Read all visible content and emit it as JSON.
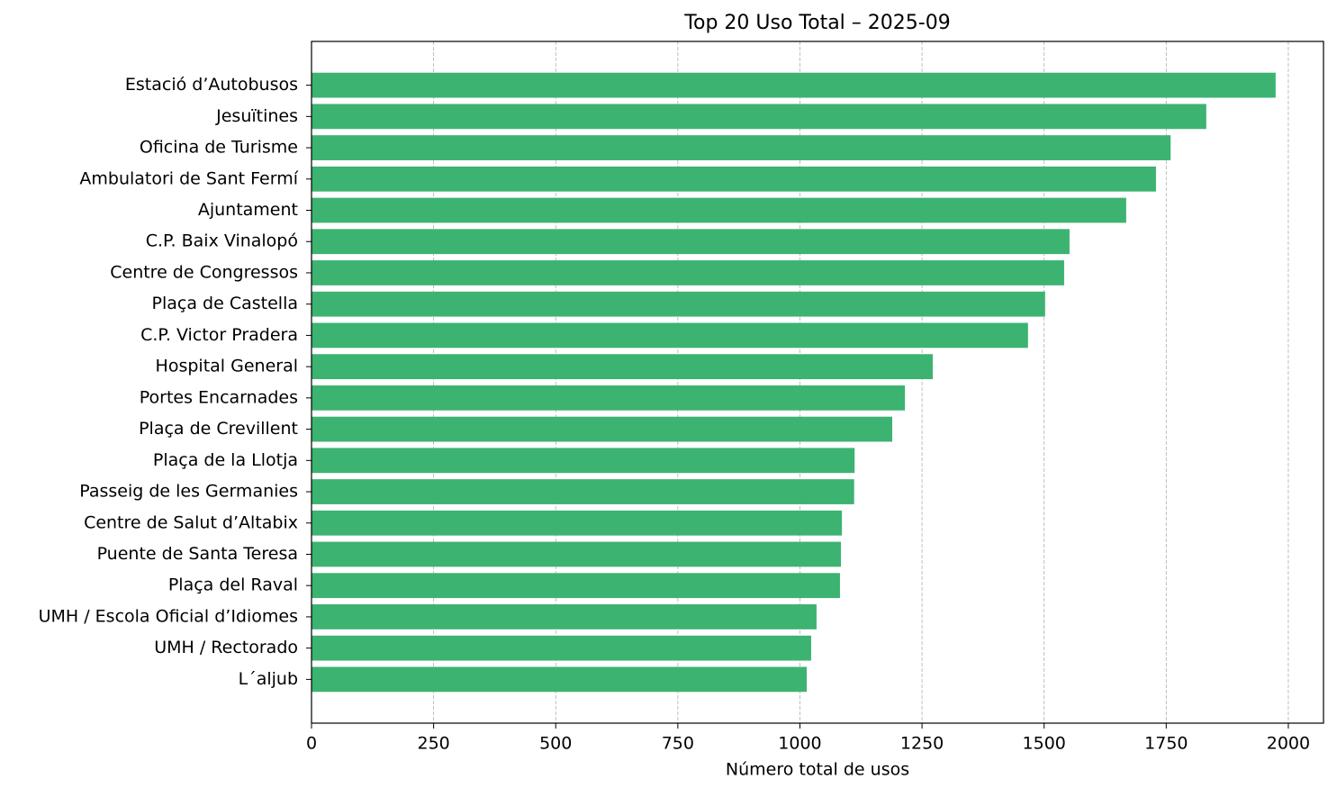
{
  "chart_data": {
    "type": "barh",
    "title": "Top 20 Uso Total – 2025-09",
    "x_label": "Número total de usos",
    "categories": [
      "Estació d’Autobusos",
      "Jesuïtines",
      "Oficina de Turisme",
      "Ambulatori de Sant Fermí",
      "Ajuntament",
      "C.P. Baix Vinalopó",
      "Centre de Congressos",
      "Plaça de Castella",
      "C.P. Victor Pradera",
      "Hospital General",
      "Portes Encarnades",
      "Plaça de Crevillent",
      "Plaça de la Llotja",
      "Passeig de les Germanies",
      "Centre de Salut d’Altabix",
      "Puente de Santa Teresa",
      "Plaça del Raval",
      "UMH / Escola Oficial d’Idiomes",
      "UMH / Rectorado",
      "L´aljub"
    ],
    "values": [
      1974,
      1832,
      1759,
      1729,
      1668,
      1552,
      1541,
      1502,
      1467,
      1272,
      1215,
      1189,
      1112,
      1111,
      1086,
      1084,
      1082,
      1034,
      1023,
      1014
    ],
    "color": "#3cb371",
    "xlim": [
      0,
      2072
    ],
    "xticks": [
      0,
      250,
      500,
      750,
      1000,
      1250,
      1500,
      1750,
      2000
    ],
    "grid": true
  }
}
